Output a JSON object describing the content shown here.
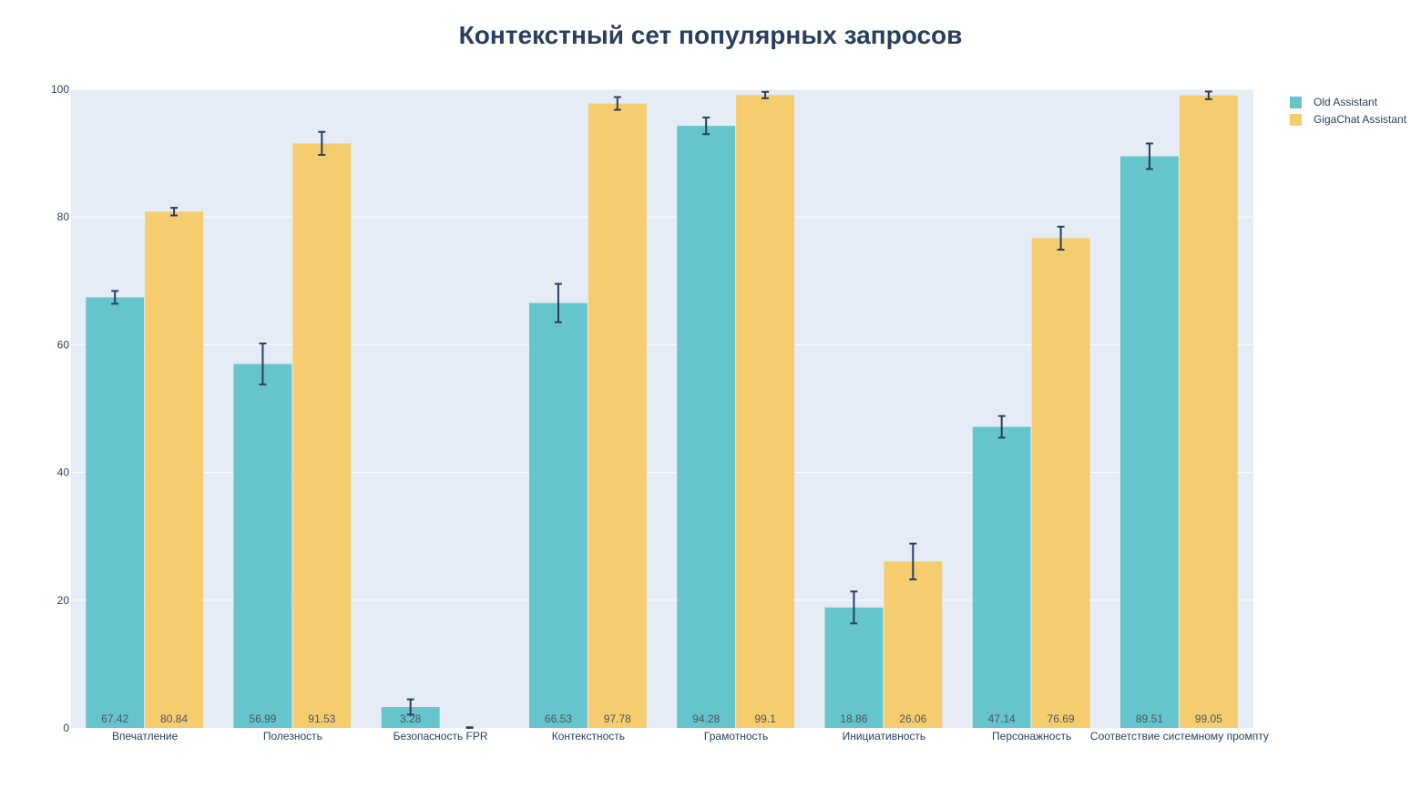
{
  "chart_data": {
    "type": "bar",
    "title": "Контекстный сет популярных запросов",
    "xlabel": "",
    "ylabel": "",
    "ylim": [
      0,
      100
    ],
    "yticks": [
      0,
      20,
      40,
      60,
      80,
      100
    ],
    "grid": true,
    "legend_position": "top-right",
    "categories": [
      "Впечатление",
      "Полезность",
      "Безопасность FPR",
      "Контекстность",
      "Грамотность",
      "Инициативность",
      "Персонажность",
      "Соответствие системному промпту"
    ],
    "series": [
      {
        "name": "Old Assistant",
        "color": "#66c4cc",
        "values": [
          67.42,
          56.99,
          3.28,
          66.53,
          94.28,
          18.86,
          47.14,
          89.51
        ],
        "labels": [
          "67.42",
          "56.99",
          "3.28",
          "66.53",
          "94.28",
          "18.86",
          "47.14",
          "89.51"
        ],
        "errors": [
          1.0,
          3.2,
          1.2,
          3.0,
          1.3,
          2.5,
          1.7,
          2.0
        ]
      },
      {
        "name": "GigaChat Assistant",
        "color": "#f5cd6e",
        "values": [
          80.84,
          91.53,
          0,
          97.78,
          99.1,
          26.06,
          76.69,
          99.05
        ],
        "labels": [
          "80.84",
          "91.53",
          "",
          "97.78",
          "99.1",
          "26.06",
          "76.69",
          "99.05"
        ],
        "errors": [
          0.6,
          1.8,
          0.1,
          1.0,
          0.5,
          2.8,
          1.8,
          0.6
        ]
      }
    ]
  }
}
